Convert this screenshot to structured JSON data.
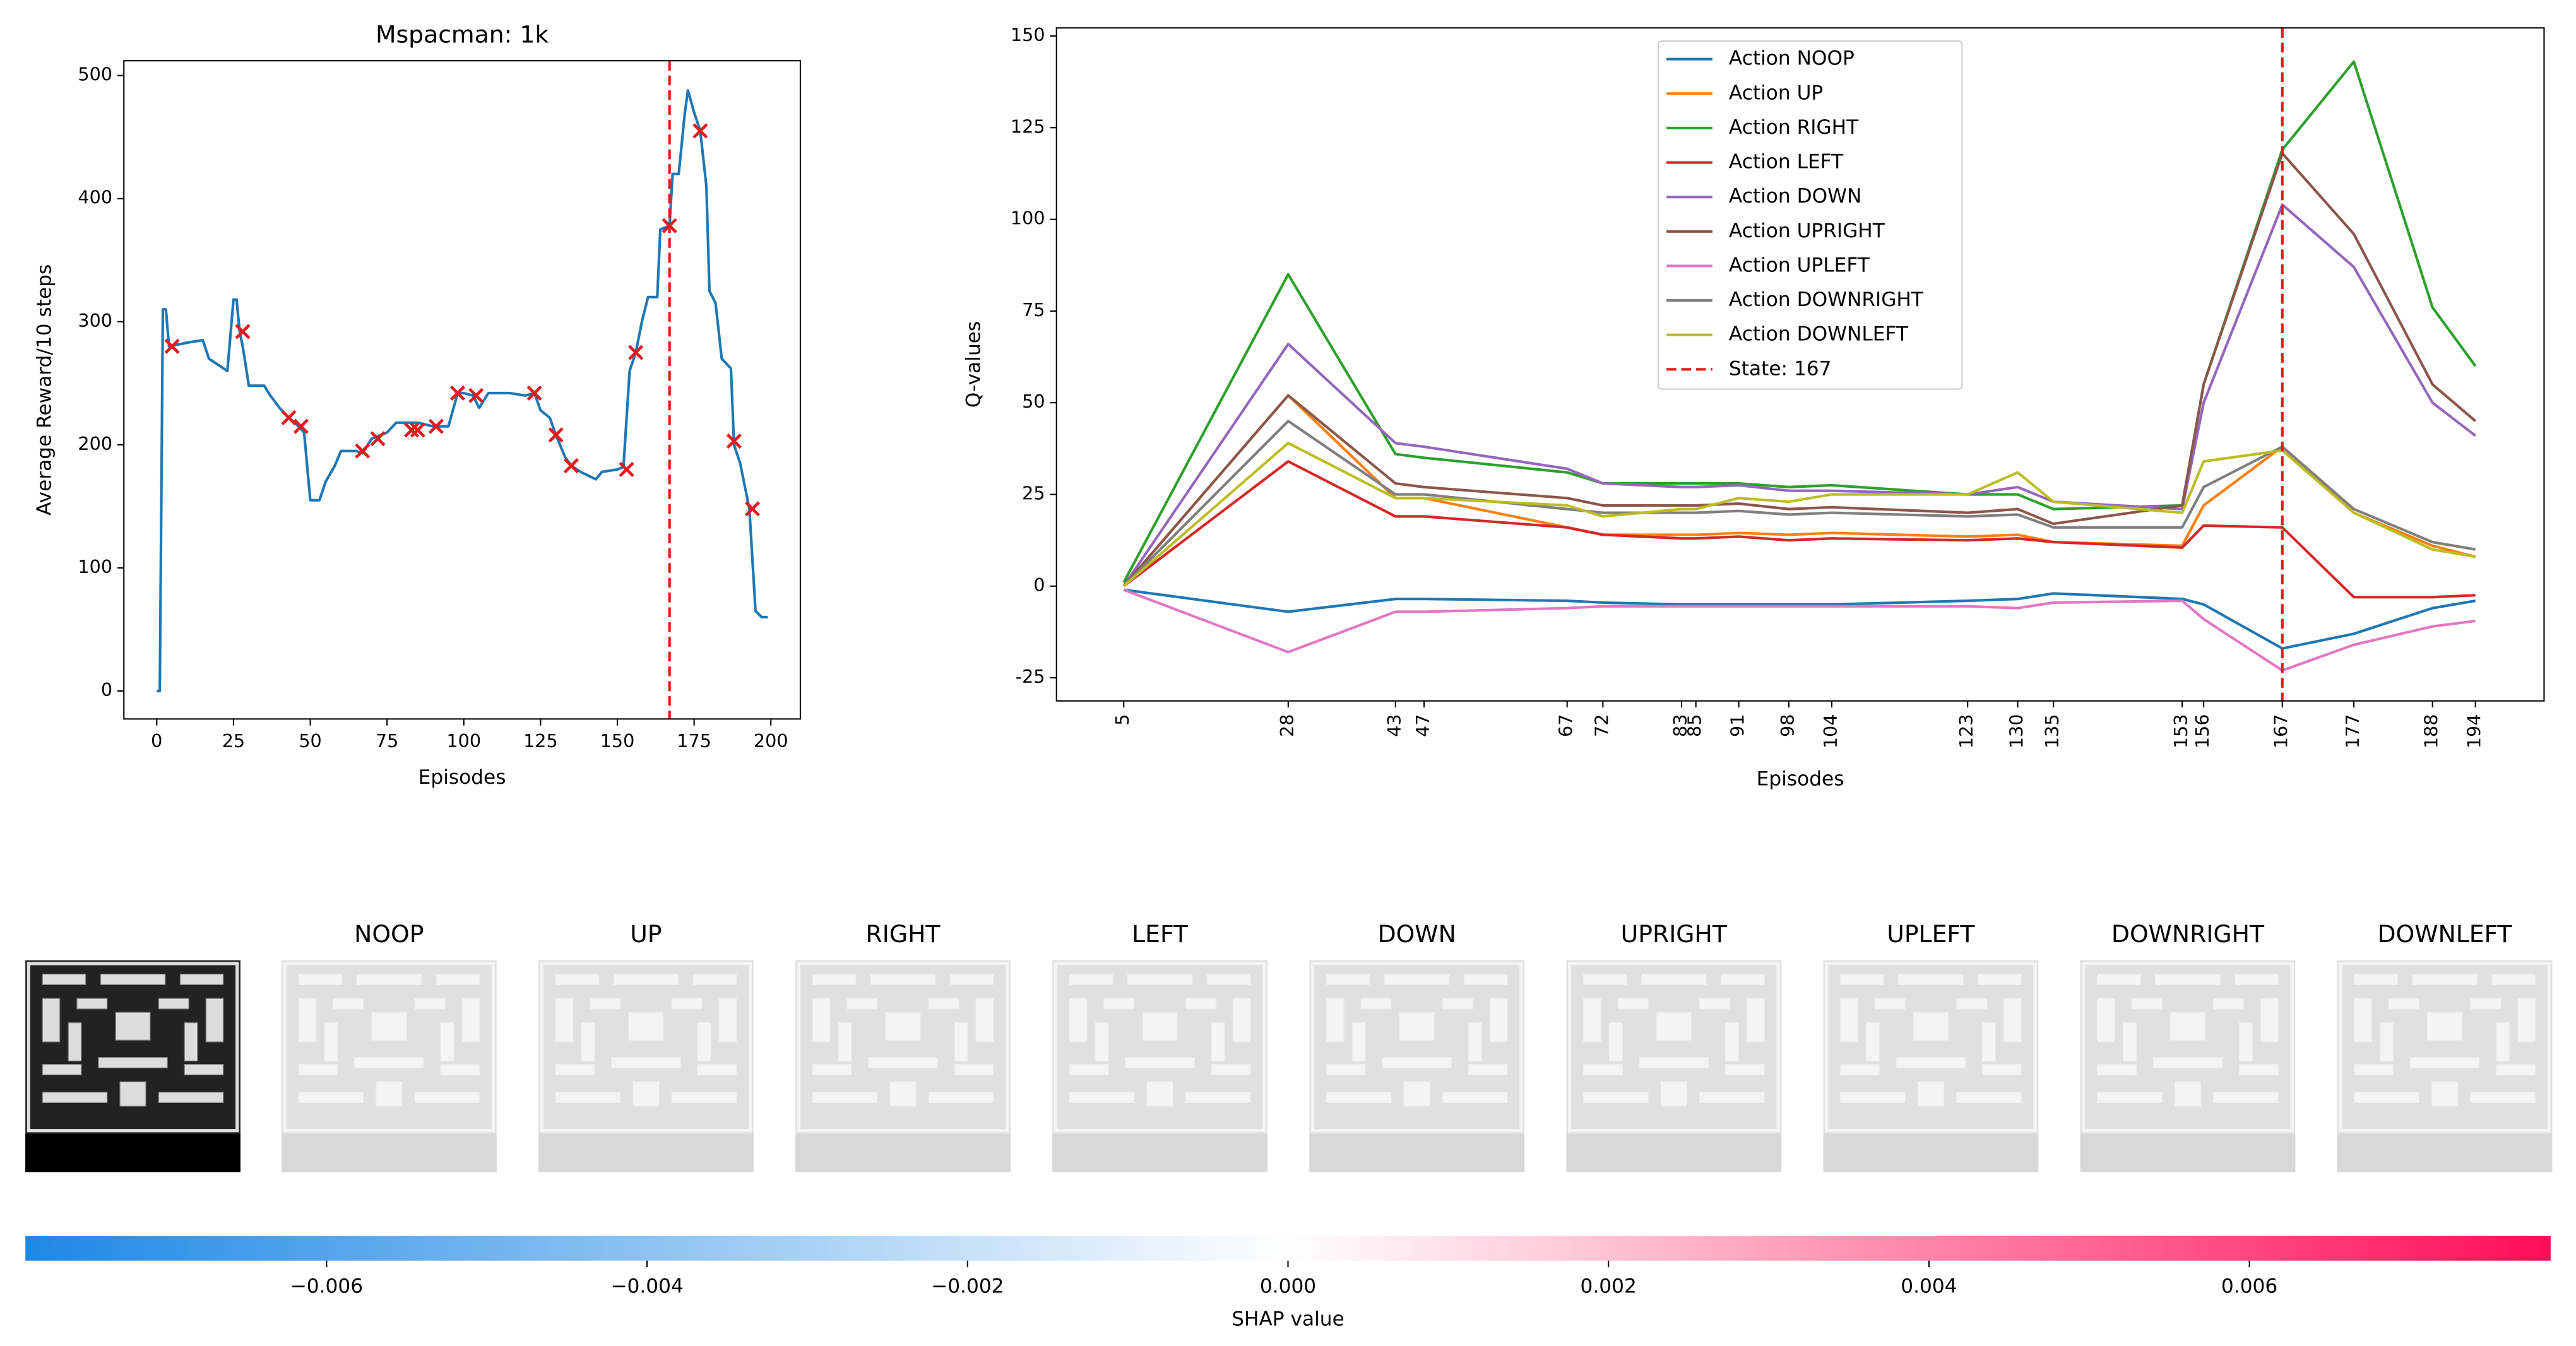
{
  "chart_data": [
    {
      "type": "line",
      "title": "Mspacman: 1k",
      "xlabel": "Episodes",
      "ylabel": "Average Reward/10 steps",
      "xlim": [
        -10.7,
        209.6
      ],
      "ylim": [
        -22.7,
        512
      ],
      "xticks": [
        0,
        25,
        50,
        75,
        100,
        125,
        150,
        175,
        200
      ],
      "yticks": [
        0,
        100,
        200,
        300,
        400,
        500
      ],
      "series": [
        {
          "color": "#1f77b4",
          "x": [
            0,
            1,
            2,
            3,
            4,
            10,
            15,
            17,
            20,
            23,
            25,
            26,
            27,
            28,
            30,
            35,
            37,
            40,
            43,
            45,
            48,
            50,
            53,
            55,
            58,
            60,
            65,
            67,
            70,
            75,
            78,
            85,
            90,
            95,
            98,
            100,
            103,
            105,
            108,
            115,
            120,
            123,
            125,
            128,
            130,
            133,
            135,
            138,
            143,
            145,
            150,
            152,
            154,
            156,
            158,
            160,
            163,
            164,
            167,
            168,
            170,
            172,
            173,
            175,
            177,
            179,
            180,
            182,
            184,
            187,
            188,
            190,
            193,
            195,
            197,
            199
          ],
          "values": [
            0,
            0,
            310,
            310,
            280,
            283,
            285,
            270,
            265,
            260,
            318,
            318,
            292,
            280,
            248,
            248,
            240,
            230,
            222,
            218,
            210,
            155,
            155,
            170,
            183,
            195,
            195,
            193,
            205,
            210,
            218,
            218,
            215,
            215,
            242,
            242,
            240,
            230,
            242,
            242,
            240,
            242,
            228,
            222,
            208,
            190,
            183,
            178,
            172,
            178,
            180,
            182,
            260,
            275,
            300,
            320,
            320,
            375,
            378,
            420,
            420,
            470,
            488,
            470,
            455,
            410,
            325,
            315,
            270,
            262,
            200,
            185,
            148,
            65,
            60,
            60
          ]
        },
        {
          "marker": "x",
          "color": "#e41a1c",
          "x": [
            5,
            28,
            43,
            47,
            67,
            72,
            83,
            85,
            91,
            98,
            104,
            123,
            130,
            135,
            153,
            156,
            167,
            177,
            188,
            194
          ],
          "values": [
            280,
            292,
            222,
            215,
            195,
            205,
            212,
            212,
            215,
            242,
            240,
            242,
            208,
            183,
            180,
            275,
            378,
            455,
            203,
            148
          ]
        }
      ],
      "vline": {
        "x": 167,
        "color": "#e41a1c",
        "style": "dashed"
      }
    },
    {
      "type": "line",
      "xlabel": "Episodes",
      "ylabel": "Q-values",
      "xlim": [
        -4.4,
        203.6
      ],
      "ylim": [
        -31.3,
        152.2
      ],
      "xticks": [
        5,
        28,
        43,
        47,
        67,
        72,
        83,
        85,
        91,
        98,
        104,
        123,
        130,
        135,
        153,
        156,
        167,
        177,
        188,
        194
      ],
      "xtick_rotation": 90,
      "yticks": [
        -25,
        0,
        25,
        50,
        75,
        100,
        125,
        150
      ],
      "legend": "upper center",
      "x": [
        5,
        28,
        43,
        47,
        67,
        72,
        83,
        85,
        91,
        98,
        104,
        123,
        130,
        135,
        153,
        156,
        167,
        177,
        188,
        194
      ],
      "series": [
        {
          "name": "Action NOOP",
          "color": "#1f77b4",
          "values": [
            -1,
            -7,
            -3.5,
            -3.5,
            -4,
            -4.5,
            -5,
            -5,
            -5,
            -5,
            -5,
            -4,
            -3.5,
            -2,
            -3.5,
            -5,
            -17,
            -13,
            -6,
            -4
          ]
        },
        {
          "name": "Action UP",
          "color": "#ff7f0e",
          "values": [
            0,
            52,
            24,
            24,
            16,
            14,
            14,
            14,
            14.5,
            14,
            14.5,
            13.5,
            14,
            12,
            11,
            22,
            38,
            20,
            11,
            8
          ]
        },
        {
          "name": "Action RIGHT",
          "color": "#2ca02c",
          "values": [
            1,
            85,
            36,
            35,
            31,
            28,
            28,
            28,
            28,
            27,
            27.5,
            25,
            25,
            21,
            22,
            55,
            119,
            143,
            76,
            60
          ]
        },
        {
          "name": "Action LEFT",
          "color": "#d62728",
          "values": [
            0,
            34,
            19,
            19,
            16,
            14,
            13,
            13,
            13.5,
            12.5,
            13,
            12.5,
            13,
            12,
            10.5,
            16.5,
            16,
            -3,
            -3,
            -2.5
          ]
        },
        {
          "name": "Action DOWN",
          "color": "#9467bd",
          "values": [
            0,
            66,
            39,
            38,
            32,
            28,
            27,
            27,
            27.5,
            26,
            26,
            25,
            27,
            23,
            21,
            50,
            104,
            87,
            50,
            41
          ]
        },
        {
          "name": "Action UPRIGHT",
          "color": "#8c564b",
          "values": [
            0,
            52,
            28,
            27,
            24,
            22,
            22,
            22,
            22.5,
            21,
            21.5,
            20,
            21,
            17,
            22,
            55,
            118,
            96,
            55,
            45
          ]
        },
        {
          "name": "Action UPLEFT",
          "color": "#e377c2",
          "values": [
            -1,
            -18,
            -7,
            -7,
            -6,
            -5.5,
            -5.5,
            -5.5,
            -5.5,
            -5.5,
            -5.5,
            -5.5,
            -6,
            -4.5,
            -4,
            -9,
            -23,
            -16,
            -11,
            -9.5
          ]
        },
        {
          "name": "Action DOWNRIGHT",
          "color": "#7f7f7f",
          "values": [
            0,
            45,
            25,
            25,
            21,
            20,
            20,
            20,
            20.5,
            19.5,
            20,
            19,
            19.5,
            16,
            16,
            27,
            38,
            21,
            12,
            10
          ]
        },
        {
          "name": "Action DOWNLEFT",
          "color": "#bcbd22",
          "values": [
            0,
            39,
            24,
            24,
            22,
            19,
            21,
            21,
            24,
            23,
            25,
            25,
            31,
            23,
            20,
            34,
            37,
            20,
            10,
            8
          ]
        }
      ],
      "vline": {
        "name": "State: 167",
        "x": 167,
        "color": "#e41a1c",
        "style": "dashed"
      }
    },
    {
      "type": "colorbar",
      "panel_titles": [
        "NOOP",
        "UP",
        "RIGHT",
        "LEFT",
        "DOWN",
        "UPRIGHT",
        "UPLEFT",
        "DOWNRIGHT",
        "DOWNLEFT"
      ],
      "xlabel": "SHAP value",
      "xlim": [
        -0.00788,
        0.00788
      ],
      "colors": [
        "#1e88e5",
        "#ffffff",
        "#ff0d57"
      ],
      "xticks": [
        {
          "value": -0.006,
          "label": "−0.006"
        },
        {
          "value": -0.004,
          "label": "−0.004"
        },
        {
          "value": -0.002,
          "label": "−0.002"
        },
        {
          "value": 0,
          "label": "0.000"
        },
        0.002,
        0.004,
        0.006
      ]
    }
  ]
}
